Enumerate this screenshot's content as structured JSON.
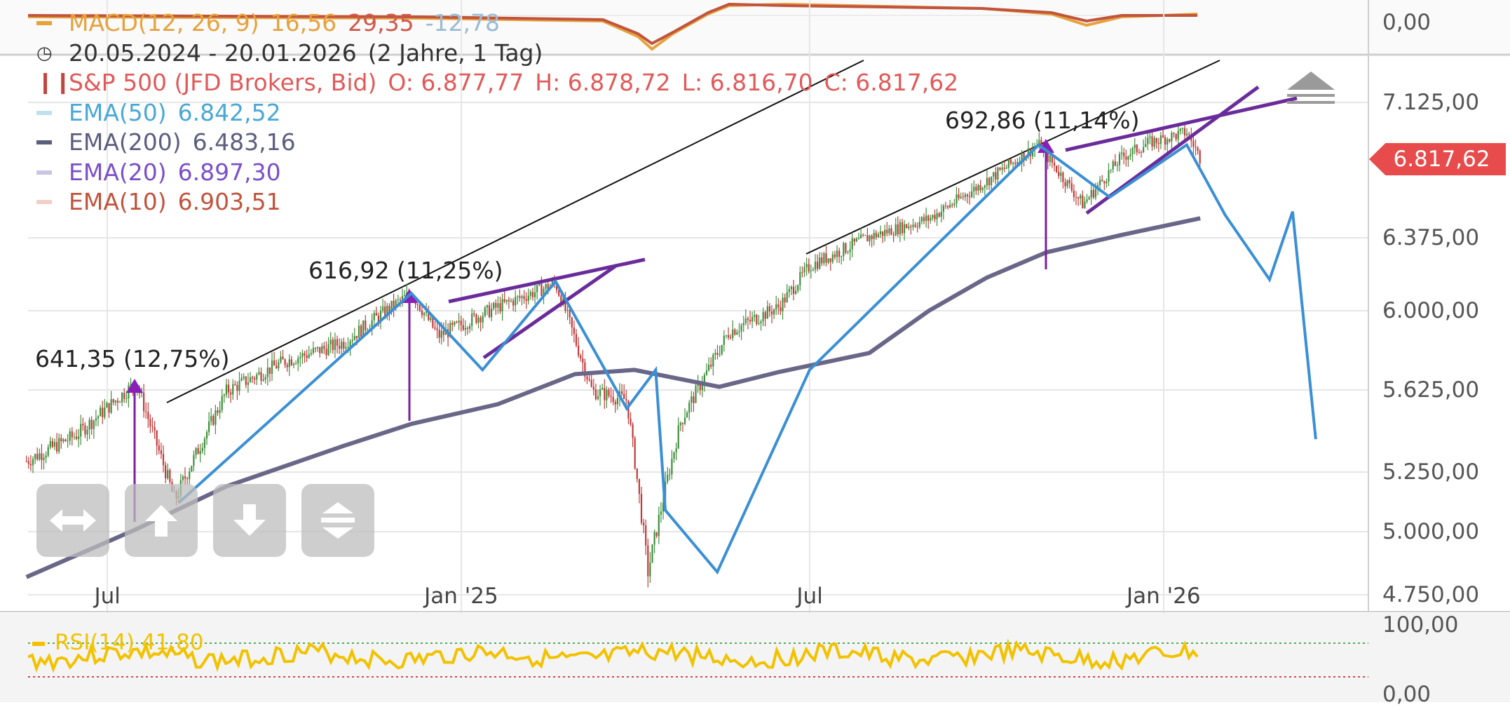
{
  "macd_legend": {
    "label": "MACD(12, 26, 9)",
    "v1": "16,56",
    "v2": "29,35",
    "v3": "-12,78"
  },
  "date_range": {
    "range": "20.05.2024 - 20.01.2026",
    "span": "(2 Jahre, 1 Tag)"
  },
  "ohlc_legend": {
    "name": "S&P 500 (JFD Brokers, Bid)",
    "o": "O: 6.877,77",
    "h": "H: 6.878,72",
    "l": "L: 6.816,70",
    "c": "C: 6.817,62"
  },
  "ema_legend": [
    {
      "label": "EMA(50)",
      "value": "6.842,52",
      "color": "#5fb0d8",
      "swatch": "#bfe0ef"
    },
    {
      "label": "EMA(200)",
      "value": "6.483,16",
      "color": "#5b5f7e",
      "swatch": "#5b5f7e"
    },
    {
      "label": "EMA(20)",
      "value": "6.897,30",
      "color": "#7b4fc9",
      "swatch": "#c9c5e6"
    },
    {
      "label": "EMA(10)",
      "value": "6.903,51",
      "color": "#c0543d",
      "swatch": "#f0cfc6"
    }
  ],
  "current_price": "6.817,62",
  "macd_axis_label": "0,00",
  "rsi_legend": "RSI(14) 41,80",
  "rsi_axis": [
    "100,00",
    "0,00"
  ],
  "annotations": [
    {
      "text": "641,35 (12,75%)"
    },
    {
      "text": "616,92 (11,25%)"
    },
    {
      "text": "692,86 (11,14%)"
    }
  ],
  "toolbar": [
    "horizontal-arrows-icon",
    "arrow-up-icon",
    "arrow-down-icon",
    "expand-vertical-icon"
  ],
  "chart_data": {
    "type": "line",
    "title": "S&P 500 (JFD Brokers, Bid)",
    "y_ticks": [
      "7.125,00",
      "6.375,00",
      "6.000,00",
      "5.625,00",
      "5.250,00",
      "5.000,00",
      "4.750,00"
    ],
    "y_tick_values": [
      7125,
      6375,
      6000,
      5625,
      5250,
      5000,
      4750
    ],
    "x_ticks": [
      "Jul",
      "Jan '25",
      "Jul",
      "Jan '26"
    ],
    "x_tick_dates": [
      "2024-07-01",
      "2025-01-01",
      "2025-07-01",
      "2026-01-01"
    ],
    "ylim": [
      4700,
      7300
    ],
    "series": [
      {
        "name": "S&P 500 (JFD Brokers, Bid)",
        "color": "#4a8a3a",
        "x": [
          "2024-05-20",
          "2024-06-15",
          "2024-07-16",
          "2024-08-05",
          "2024-09-01",
          "2024-10-01",
          "2024-11-01",
          "2024-12-06",
          "2024-12-20",
          "2025-01-20",
          "2025-02-19",
          "2025-03-10",
          "2025-03-28",
          "2025-04-08",
          "2025-04-25",
          "2025-05-20",
          "2025-06-15",
          "2025-07-01",
          "2025-08-01",
          "2025-09-01",
          "2025-10-01",
          "2025-10-28",
          "2025-11-20",
          "2025-12-10",
          "2025-12-24",
          "2026-01-13",
          "2026-01-20"
        ],
        "values": [
          5300,
          5420,
          5660,
          5130,
          5620,
          5760,
          5850,
          6090,
          5880,
          6020,
          6140,
          5620,
          5580,
          4840,
          5480,
          5900,
          6020,
          6230,
          6380,
          6480,
          6690,
          6890,
          6560,
          6820,
          6900,
          6960,
          6817
        ]
      },
      {
        "name": "EMA(200)",
        "color": "#5b5f7e",
        "x": [
          "2024-05-20",
          "2024-07-16",
          "2024-09-01",
          "2024-11-01",
          "2024-12-06",
          "2025-01-20",
          "2025-03-01",
          "2025-04-01",
          "2025-05-15",
          "2025-06-15",
          "2025-08-01",
          "2025-09-01",
          "2025-10-01",
          "2025-11-01",
          "2025-12-10",
          "2026-01-20"
        ],
        "values": [
          4820,
          5010,
          5190,
          5370,
          5470,
          5560,
          5700,
          5720,
          5640,
          5710,
          5800,
          6000,
          6170,
          6300,
          6390,
          6483
        ]
      }
    ],
    "projection_points": [
      {
        "x": "2024-08-07",
        "y": 5120
      },
      {
        "x": "2024-12-06",
        "y": 6090
      },
      {
        "x": "2025-01-12",
        "y": 5720
      },
      {
        "x": "2025-02-19",
        "y": 6150
      },
      {
        "x": "2025-03-28",
        "y": 5540
      },
      {
        "x": "2025-04-12",
        "y": 5720
      },
      {
        "x": "2025-04-17",
        "y": 5090
      },
      {
        "x": "2025-05-14",
        "y": 4840
      },
      {
        "x": "2025-07-01",
        "y": 5720
      },
      {
        "x": "2025-10-28",
        "y": 6890
      },
      {
        "x": "2025-12-04",
        "y": 6600
      },
      {
        "x": "2026-01-13",
        "y": 6890
      },
      {
        "x": "2026-02-02",
        "y": 6500
      },
      {
        "x": "2026-02-25",
        "y": 6160
      },
      {
        "x": "2026-03-09",
        "y": 6520
      },
      {
        "x": "2026-03-21",
        "y": 5400
      }
    ],
    "grid": true,
    "legend": "top-left"
  }
}
